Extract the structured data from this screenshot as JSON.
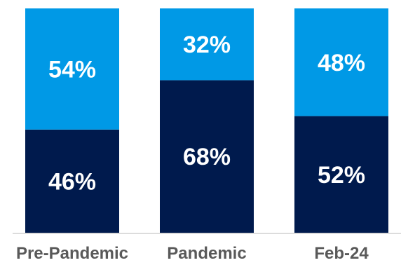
{
  "chart_data": {
    "type": "bar",
    "stacked": true,
    "percent_stacked": true,
    "categories": [
      "Pre-Pandemic",
      "Pandemic",
      "Feb-24"
    ],
    "series": [
      {
        "values": [
          46,
          68,
          52
        ],
        "labels": [
          "46%",
          "68%",
          "52%"
        ],
        "color": "#001a4d",
        "position": "bottom"
      },
      {
        "values": [
          54,
          32,
          48
        ],
        "labels": [
          "54%",
          "32%",
          "48%"
        ],
        "color": "#0099e6",
        "position": "top"
      }
    ],
    "ylim": [
      0,
      100
    ],
    "grid": false,
    "legend": "none",
    "title": "",
    "xlabel": "",
    "ylabel": ""
  }
}
